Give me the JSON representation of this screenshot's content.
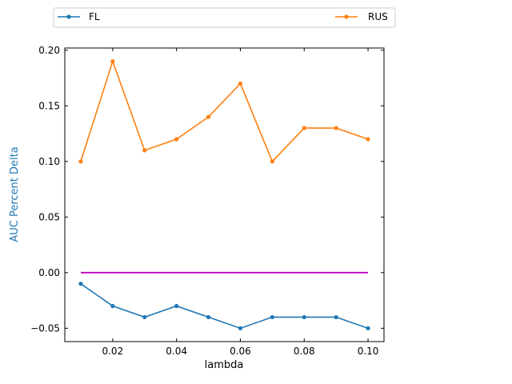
{
  "chart_data": {
    "type": "line",
    "title": "",
    "xlabel": "lambda",
    "ylabel": "AUC Percent Delta",
    "xlim": [
      0.005,
      0.105
    ],
    "ylim": [
      -0.062,
      0.202
    ],
    "xticks": [
      0.02,
      0.04,
      0.06,
      0.08,
      0.1
    ],
    "xtick_labels": [
      "0.02",
      "0.04",
      "0.06",
      "0.08",
      "0.10"
    ],
    "yticks": [
      -0.05,
      0.0,
      0.05,
      0.1,
      0.15,
      0.2
    ],
    "ytick_labels": [
      "−0.05",
      "0.00",
      "0.05",
      "0.10",
      "0.15",
      "0.20"
    ],
    "grid": false,
    "legend_position": "top, outside plot",
    "x": [
      0.01,
      0.02,
      0.03,
      0.04,
      0.05,
      0.06,
      0.07,
      0.08,
      0.09,
      0.1
    ],
    "series": [
      {
        "name": "FL",
        "color": "#1f77b4",
        "marker": "circle",
        "values": [
          -0.01,
          -0.03,
          -0.04,
          -0.03,
          -0.04,
          -0.05,
          -0.04,
          -0.04,
          -0.04,
          -0.05
        ]
      },
      {
        "name": "RUS",
        "color": "#ff7f0e",
        "marker": "circle",
        "values": [
          0.1,
          0.19,
          0.11,
          0.12,
          0.14,
          0.17,
          0.1,
          0.13,
          0.13,
          0.12
        ]
      }
    ],
    "reference_line": {
      "y": 0.0,
      "x_range": [
        0.01,
        0.1
      ],
      "color": "#bf00bf"
    },
    "ylabel_color": "#1f77b4"
  }
}
